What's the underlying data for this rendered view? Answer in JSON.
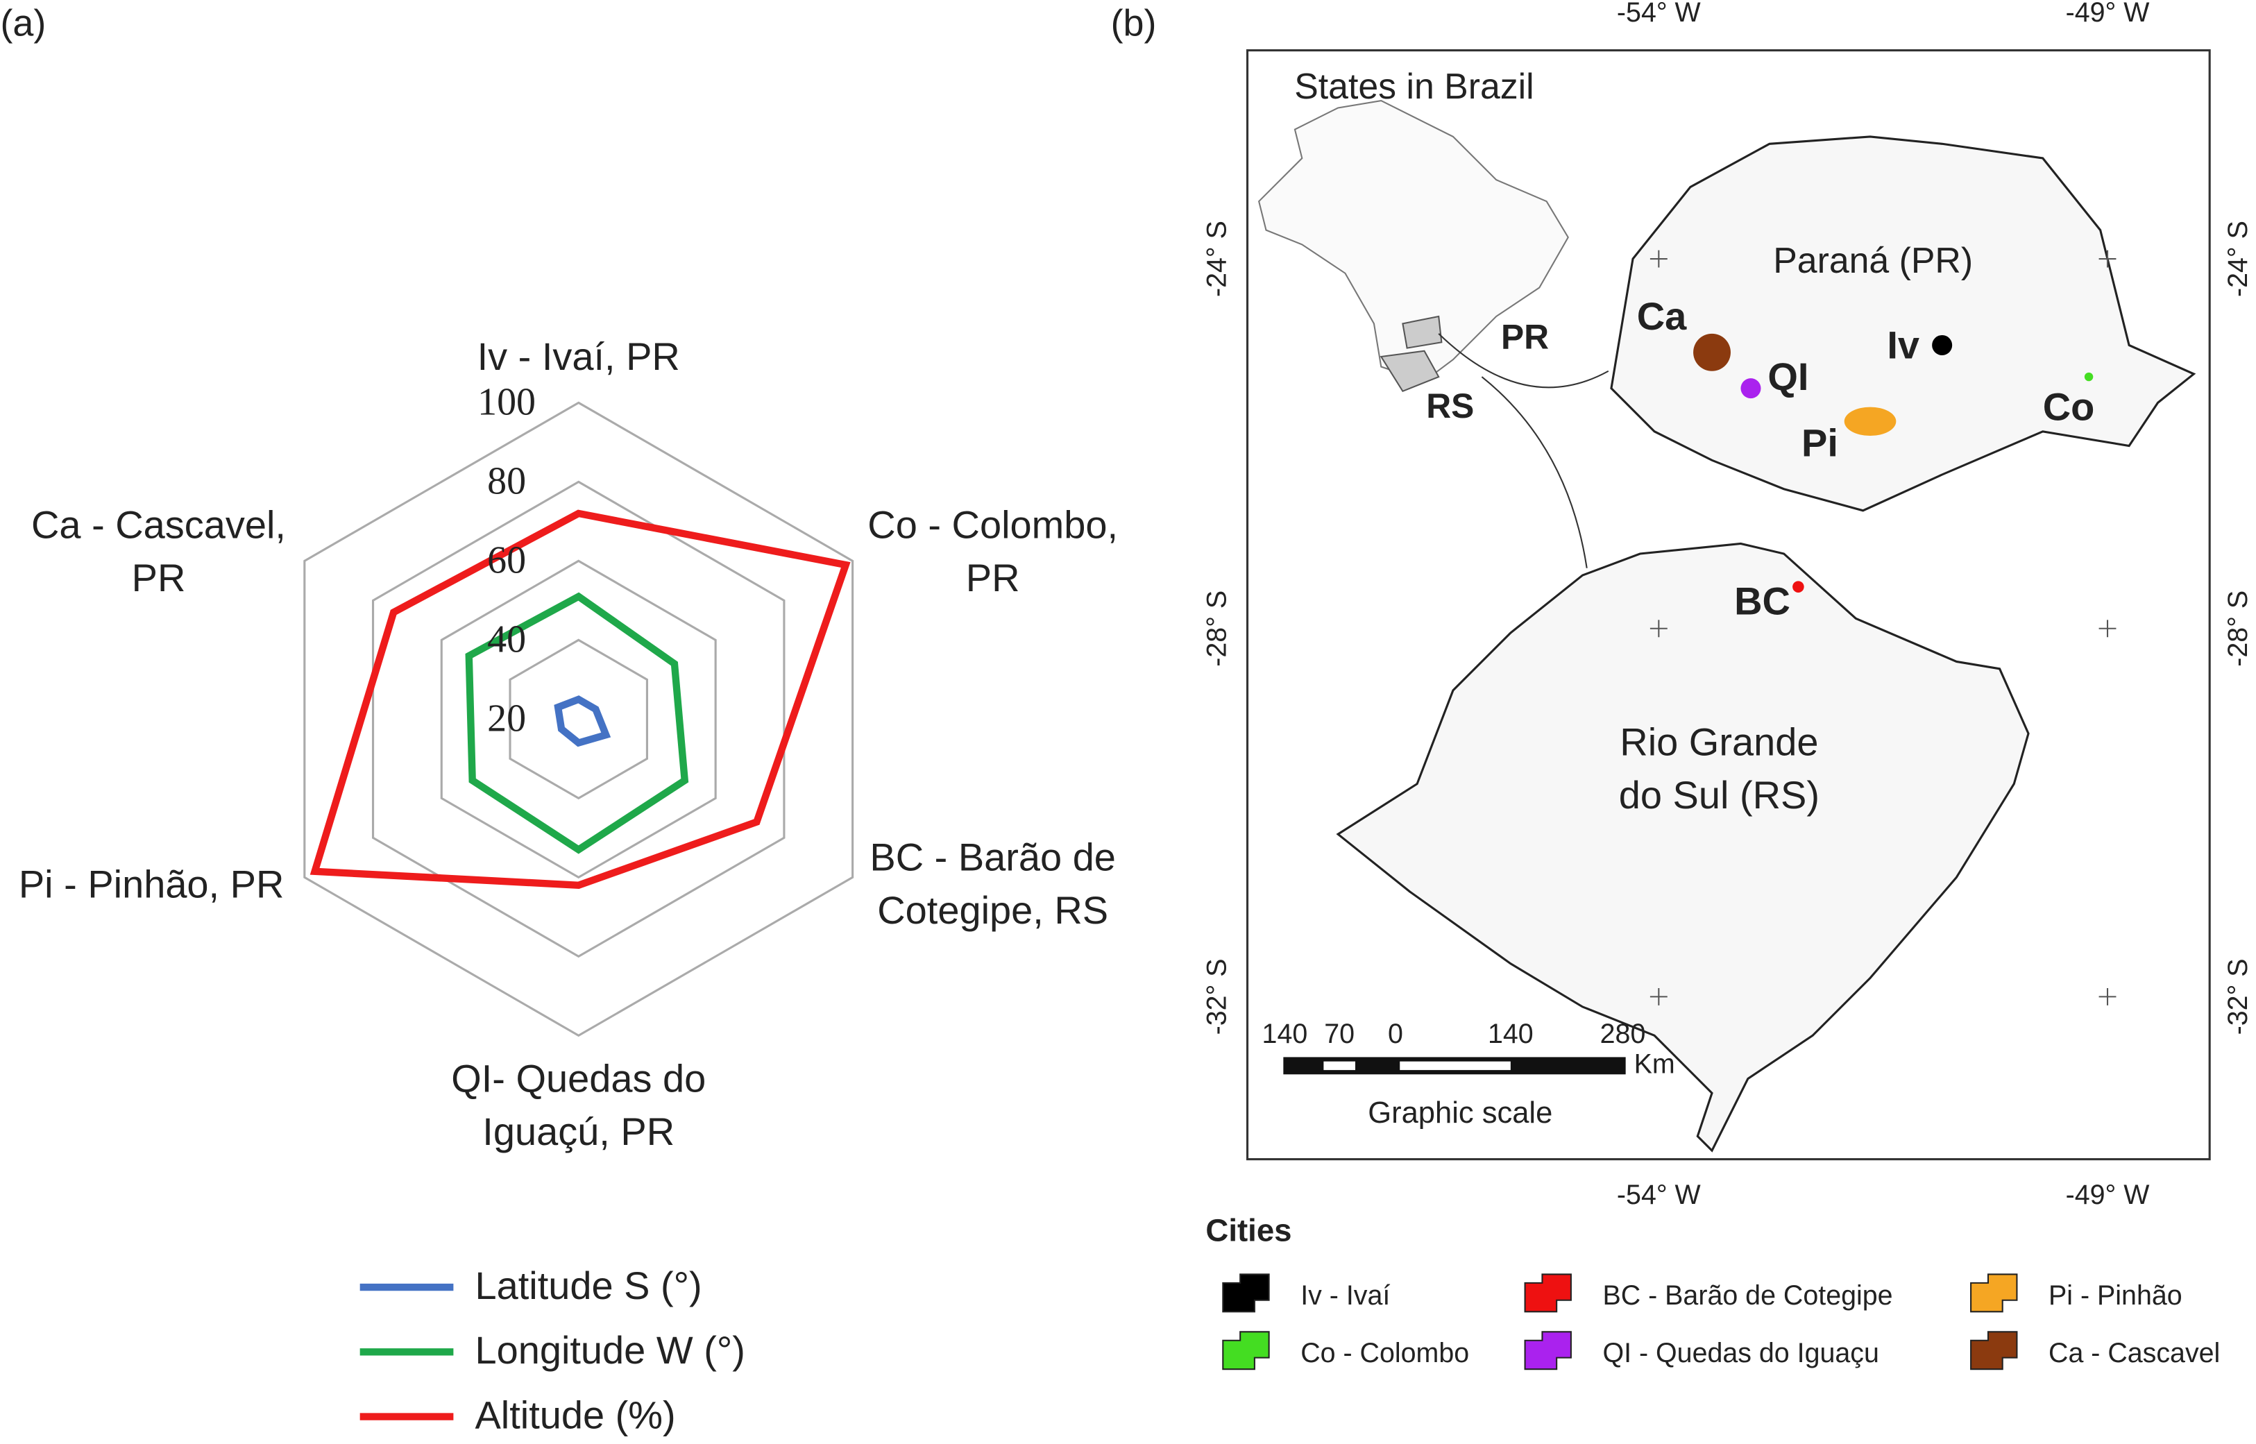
{
  "panels": [
    "(a)",
    "(b)"
  ],
  "chart_data": {
    "type": "radar",
    "categories": [
      [
        "Iv - Ivaí, PR"
      ],
      [
        "Co - Colombo,",
        "PR"
      ],
      [
        "BC - Barão de",
        "Cotegipe, RS"
      ],
      [
        "QI- Quedas do",
        "Iguaçú, PR"
      ],
      [
        "Pi - Pinhão, PR"
      ],
      [
        "Ca - Cascavel,",
        "PR"
      ]
    ],
    "ylim": [
      20,
      100
    ],
    "yticks": [
      20,
      40,
      60,
      80,
      100
    ],
    "grid": true,
    "series": [
      {
        "name": "Latitude S (°)",
        "color": "#4472c4",
        "values": [
          25,
          25,
          28,
          26,
          25,
          26
        ]
      },
      {
        "name": "Longitude W (°)",
        "color": "#1fa84a",
        "values": [
          51,
          48,
          51,
          53,
          51,
          52
        ]
      },
      {
        "name": "Altitude (%)",
        "color": "#ee1c1c",
        "values": [
          72,
          98,
          72,
          62,
          97,
          74
        ]
      }
    ]
  },
  "map": {
    "lon_labels": [
      "-54° W",
      "-49° W"
    ],
    "lat_labels": [
      "-24° S",
      "-28° S",
      "-32° S"
    ],
    "inset_title": "States in Brazil",
    "parana": "Paraná (PR)",
    "rs": [
      "Rio Grande",
      "do Sul (RS)"
    ],
    "arrow_labels": [
      "PR",
      "RS"
    ],
    "city_codes": [
      "Ca",
      "QI",
      "Iv",
      "Pi",
      "Co",
      "BC"
    ],
    "scale_ticks": [
      "140",
      "70",
      "0",
      "140",
      "280"
    ],
    "scale_unit": "Km",
    "scale_title": "Graphic scale",
    "legend_title": "Cities",
    "legend": [
      {
        "label": "Iv - Ivaí",
        "color": "#000000"
      },
      {
        "label": "Co - Colombo",
        "color": "#44dd22"
      },
      {
        "label": "BC - Barão de Cotegipe",
        "color": "#ee1111"
      },
      {
        "label": "QI - Quedas do Iguaçu",
        "color": "#aa22ee"
      },
      {
        "label": "Pi - Pinhão",
        "color": "#f5a623"
      },
      {
        "label": "Ca - Cascavel",
        "color": "#8b3a0f"
      }
    ]
  }
}
